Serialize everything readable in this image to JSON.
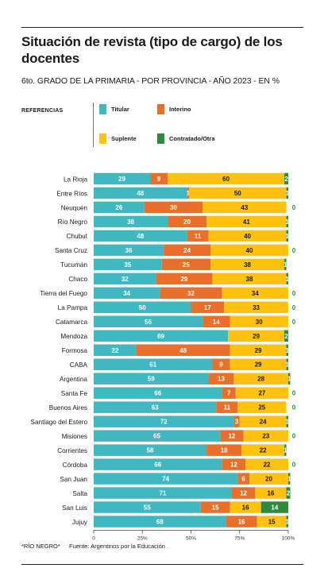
{
  "title": "Situación de revista (tipo de cargo) de los docentes",
  "subtitle": "6to. GRADO DE LA PRIMARIA - POR PROVINCIA - AÑO 2023 - EN %",
  "legend": {
    "title": "REFERENCIAS",
    "items": [
      {
        "label": "Titular",
        "color": "#3fb8c2"
      },
      {
        "label": "Interino",
        "color": "#e8702a"
      },
      {
        "label": "Suplente",
        "color": "#ffc20e"
      },
      {
        "label": "Contratado/Otra",
        "color": "#2e8b3d"
      }
    ]
  },
  "footnote": "*RÍO NEGRO*",
  "source": "Fuente: Argentinos por la Educación .",
  "chart_data": {
    "type": "bar",
    "orientation": "horizontal",
    "stacked": true,
    "title": "Situación de revista (tipo de cargo) de los docentes",
    "subtitle": "6to. GRADO DE LA PRIMARIA - POR PROVINCIA - AÑO 2023 - EN %",
    "unit": "%",
    "xlim": [
      0,
      100
    ],
    "ticks": [
      "0",
      "25%",
      "50%",
      "75%",
      "100%"
    ],
    "grid": false,
    "legend_position": "top",
    "categories": [
      "La Rioja",
      "Entre Ríos",
      "Neuquén",
      "Río Negro",
      "Chubut",
      "Santa Cruz",
      "Tucumán",
      "Chaco",
      "Tierra del Fuego",
      "La Pampa",
      "Catamarca",
      "Mendoza",
      "Formosa",
      "CABA",
      "Argentina",
      "Santa Fe",
      "Buenos Aires",
      "Santiago del Estero",
      "Misiones",
      "Corrientes",
      "Córdoba",
      "San Juan",
      "Salta",
      "San Luis",
      "Jujuy"
    ],
    "series": [
      {
        "name": "Titular",
        "color": "#3fb8c2",
        "values": [
          29,
          48,
          26,
          38,
          48,
          36,
          35,
          32,
          34,
          50,
          56,
          69,
          22,
          61,
          59,
          66,
          63,
          72,
          65,
          58,
          66,
          74,
          71,
          55,
          68
        ]
      },
      {
        "name": "Interino",
        "color": "#e8702a",
        "values": [
          9,
          1,
          30,
          20,
          11,
          24,
          25,
          29,
          32,
          17,
          14,
          0,
          48,
          9,
          13,
          7,
          11,
          3,
          12,
          18,
          12,
          6,
          12,
          15,
          16
        ]
      },
      {
        "name": "Suplente",
        "color": "#ffc20e",
        "values": [
          60,
          50,
          43,
          41,
          40,
          40,
          38,
          38,
          34,
          33,
          30,
          29,
          29,
          29,
          28,
          27,
          25,
          24,
          23,
          22,
          22,
          20,
          16,
          16,
          15
        ]
      },
      {
        "name": "Contratado/Otra",
        "color": "#2e8b3d",
        "values": [
          2,
          1,
          0,
          1,
          1,
          0,
          1,
          1,
          0,
          0,
          0,
          2,
          1,
          1,
          1,
          0,
          0,
          1,
          0,
          1,
          0,
          1,
          2,
          14,
          1
        ]
      }
    ]
  }
}
